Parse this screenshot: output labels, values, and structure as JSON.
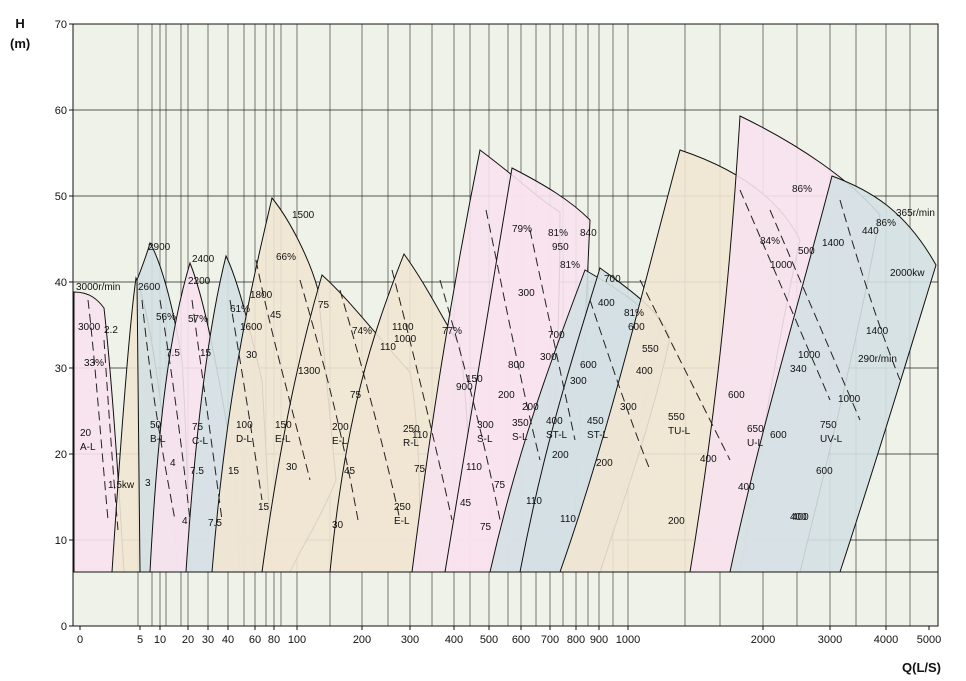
{
  "chart_data": {
    "type": "line",
    "xlabel": "Q(L/S)",
    "ylabel": "H\n(m)",
    "y_axis_title": [
      "H",
      "(m)"
    ],
    "x_scale": "log",
    "xlim": [
      0,
      5000
    ],
    "ylim": [
      0,
      70
    ],
    "x_ticks": [
      "0",
      "5",
      "10",
      "20",
      "30",
      "40",
      "60",
      "80",
      "100",
      "200",
      "300",
      "400",
      "500",
      "600",
      "700",
      "800",
      "900",
      "1000",
      "2000",
      "3000",
      "4000",
      "5000"
    ],
    "y_ticks": [
      "0",
      "10",
      "20",
      "30",
      "40",
      "50",
      "60",
      "70"
    ],
    "grid": true,
    "regions": [
      {
        "model": "20",
        "series": "A-L",
        "color": "#f7e2ee"
      },
      {
        "model": "50",
        "series": "B-L",
        "color": "#f1e6d3"
      },
      {
        "model": "75",
        "series": "C-L",
        "color": "#d4e0e3"
      },
      {
        "model": "100",
        "series": "D-L",
        "color": "#f7e2ee"
      },
      {
        "model": "150",
        "series": "E-L",
        "color": "#d4e0e3"
      },
      {
        "model": "200",
        "series": "E-L",
        "color": "#f1e6d3"
      },
      {
        "model": "250",
        "series": "R-L",
        "color": "#f1e6d3"
      },
      {
        "model": "250",
        "series": "E-L",
        "color": "#f1e6d3"
      },
      {
        "model": "300",
        "series": "S-L",
        "color": "#f7e2ee"
      },
      {
        "model": "350",
        "series": "S-L",
        "color": "#f7e2ee"
      },
      {
        "model": "400",
        "series": "ST-L",
        "color": "#d4e0e3"
      },
      {
        "model": "450",
        "series": "ST-L",
        "color": "#d4e0e3"
      },
      {
        "model": "550",
        "series": "TU-L",
        "color": "#f1e6d3"
      },
      {
        "model": "650",
        "series": "U-L",
        "color": "#f7e2ee"
      },
      {
        "model": "750",
        "series": "UV-L",
        "color": "#d4e0e3"
      }
    ],
    "annotations": [
      "3000r/min",
      "3000",
      "2.2",
      "33%",
      "1.5kw",
      "2900",
      "2600",
      "56%",
      "7.5",
      "3",
      "4",
      "2400",
      "2200",
      "57%",
      "15",
      "7.5",
      "4",
      "7.5",
      "61%",
      "1800",
      "1600",
      "30",
      "15",
      "45",
      "66%",
      "1500",
      "75",
      "1300",
      "30",
      "15",
      "74%",
      "110",
      "75",
      "45",
      "30",
      "1100",
      "1000",
      "77%",
      "900",
      "150",
      "110",
      "75",
      "45",
      "75",
      "79%",
      "300",
      "800",
      "200",
      "110",
      "75",
      "81%",
      "950",
      "840",
      "81%",
      "700",
      "300",
      "200",
      "110",
      "700",
      "400",
      "600",
      "300",
      "200",
      "110",
      "81%",
      "600",
      "550",
      "400",
      "300",
      "200",
      "400",
      "200",
      "86%",
      "84%",
      "1400",
      "1000",
      "500",
      "600",
      "400",
      "1000",
      "340",
      "600",
      "400",
      "86%",
      "365r/min",
      "440",
      "2000kw",
      "1400",
      "290r/min",
      "1000",
      "600",
      "400"
    ]
  }
}
